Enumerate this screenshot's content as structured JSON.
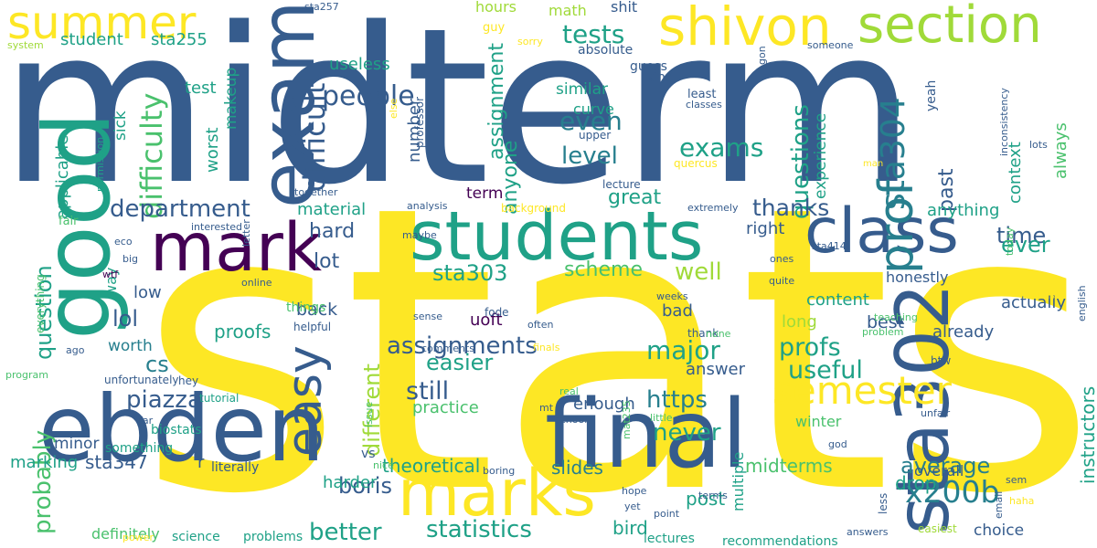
{
  "palette": {
    "yellow": "#fde725",
    "lime": "#a0da39",
    "green": "#4ac16d",
    "teal": "#1fa187",
    "cyan": "#277f8e",
    "blue": "#365c8d",
    "indigo": "#46327e",
    "purple": "#440154"
  },
  "words": [
    "midterm",
    "stats",
    "students",
    "good",
    "ebden",
    "final",
    "exam",
    "mark",
    "marks",
    "sta302",
    "class",
    "shivon",
    "section",
    "summer",
    "easy",
    "prof",
    "semester",
    "sta304",
    "difficult",
    "difficulty",
    "people",
    "tests",
    "exams",
    "department",
    "question",
    "x200b",
    "statistics",
    "piazza",
    "probably",
    "questions",
    "assignments",
    "different",
    "boris",
    "https",
    "sta303",
    "lol",
    "cs",
    "major",
    "useful",
    "profs",
    "better",
    "assignment",
    "anyone",
    "even",
    "level",
    "thanks",
    "great",
    "time",
    "ever",
    "past",
    "still",
    "easier",
    "scheme",
    "well",
    "hard",
    "lot",
    "material",
    "never",
    "average",
    "midterms",
    "theoretical",
    "slides",
    "proofs",
    "worth",
    "harder",
    "sta347",
    "marking",
    "minor",
    "bird",
    "post",
    "drop",
    "instructors",
    "context",
    "always",
    "experience",
    "student",
    "sta255",
    "useless",
    "test",
    "worst",
    "makeup",
    "sick",
    "applicable",
    "hours",
    "math",
    "shit",
    "similar",
    "curve",
    "number",
    "professor",
    "term",
    "anything",
    "right",
    "content",
    "honestly",
    "actually",
    "already",
    "uoft",
    "back",
    "low",
    "best",
    "long",
    "bad",
    "answer",
    "practice",
    "enough",
    "winter",
    "multiple",
    "overall",
    "choice",
    "definitely",
    "problems",
    "science",
    "lectures",
    "recommendations",
    "literally",
    "r",
    "vs",
    "way",
    "everything",
    "tutorial",
    "unfortunately",
    "hey",
    "program",
    "far",
    "biostats",
    "something",
    "power",
    "ago",
    "things",
    "helpful",
    "online",
    "letter",
    "eco",
    "big",
    "wtf",
    "fair",
    "permission",
    "together",
    "interested",
    "analysis",
    "background",
    "maybe",
    "extremely",
    "sense",
    "fode",
    "comments",
    "finals",
    "often",
    "sta414",
    "ones",
    "quite",
    "weeks",
    "teaching",
    "problem",
    "thank",
    "none",
    "btw",
    "english",
    "friends",
    "today",
    "issue",
    "real",
    "mt",
    "school",
    "little",
    "unfair",
    "mat235",
    "god",
    "sem",
    "haha",
    "email",
    "answers",
    "easiest",
    "less",
    "yet",
    "hope",
    "point",
    "terms",
    "boring",
    "nice",
    "sta257",
    "system",
    "sorry",
    "guy",
    "absolute",
    "guess",
    "kind",
    "gon",
    "least",
    "classes",
    "upper",
    "lecture",
    "quercus",
    "man",
    "inconsistency",
    "lots",
    "someone",
    "yeah",
    "else"
  ]
}
